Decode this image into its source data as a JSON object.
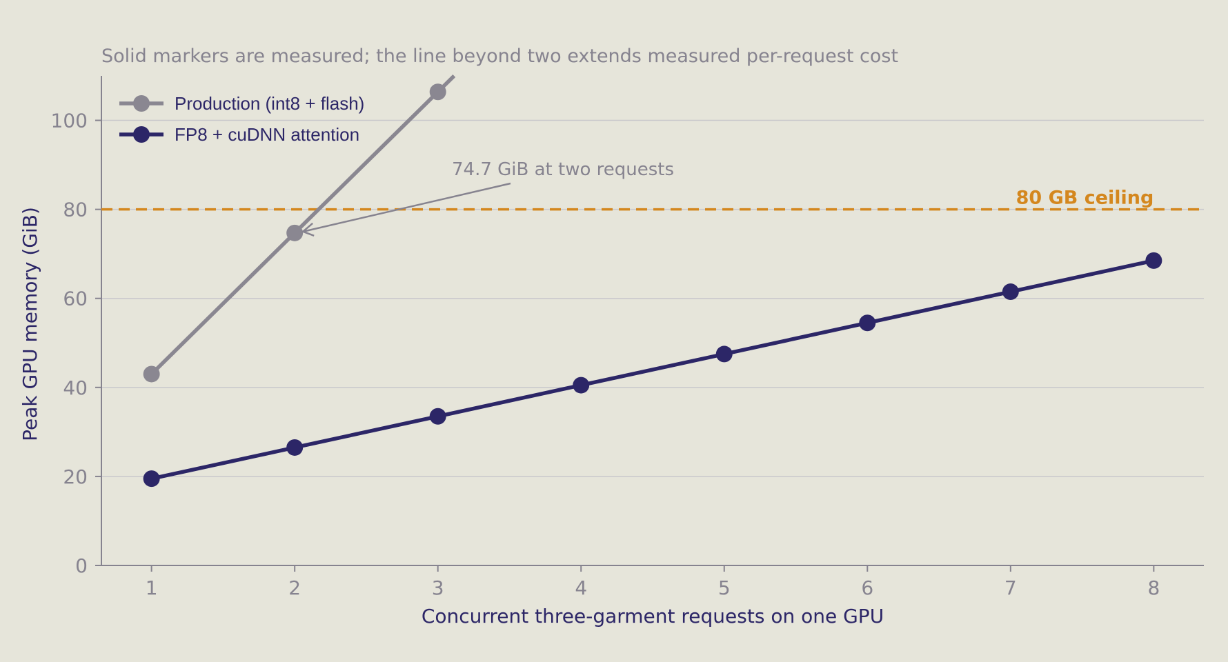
{
  "chart_data": {
    "type": "line",
    "title": "",
    "subtitle": "Solid markers are measured; the line beyond two extends measured per-request cost",
    "xlabel": "Concurrent three-garment requests on one GPU",
    "ylabel": "Peak GPU memory (GiB)",
    "xlim": [
      0.65,
      8.35
    ],
    "ylim": [
      0,
      110
    ],
    "xticks": [
      1,
      2,
      3,
      4,
      5,
      6,
      7,
      8
    ],
    "yticks": [
      0,
      20,
      40,
      60,
      80,
      100
    ],
    "grid": "horizontal",
    "legend_position": "top-left",
    "series": [
      {
        "name": "Production (int8 + flash)",
        "color": "#8a8791",
        "x": [
          1,
          2,
          3
        ],
        "values": [
          43.0,
          74.7,
          106.4
        ],
        "extends_beyond": true
      },
      {
        "name": "FP8 + cuDNN attention",
        "color": "#2c2667",
        "x": [
          1,
          2,
          3,
          4,
          5,
          6,
          7,
          8
        ],
        "values": [
          19.5,
          26.5,
          33.5,
          40.5,
          47.5,
          54.5,
          61.5,
          68.5
        ]
      }
    ],
    "reference_line": {
      "y": 80,
      "label": "80 GB ceiling",
      "color": "#d4871e",
      "style": "dashed"
    },
    "annotation": {
      "text": "74.7 GiB at two requests",
      "target_x": 2,
      "target_y": 74.7
    }
  }
}
